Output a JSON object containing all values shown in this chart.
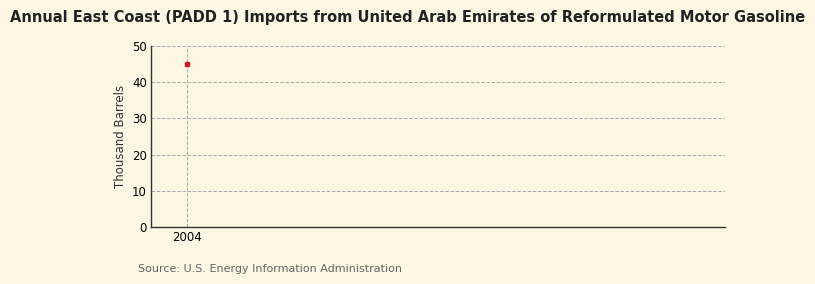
{
  "title": "Annual East Coast (PADD 1) Imports from United Arab Emirates of Reformulated Motor Gasoline",
  "ylabel": "Thousand Barrels",
  "source_text": "Source: U.S. Energy Information Administration",
  "x_data": [
    2004
  ],
  "y_data": [
    45
  ],
  "marker_color": "#cc2222",
  "marker_style": "s",
  "marker_size": 3.5,
  "ylim": [
    0,
    50
  ],
  "yticks": [
    0,
    10,
    20,
    30,
    40,
    50
  ],
  "xlim": [
    2003.3,
    2014.5
  ],
  "xticks": [
    2004
  ],
  "xtick_labels": [
    "2004"
  ],
  "background_color": "#fdf6e3",
  "grid_color": "#aaaaaa",
  "grid_style": "--",
  "title_fontsize": 10.5,
  "ylabel_fontsize": 8.5,
  "tick_fontsize": 8.5,
  "source_fontsize": 8
}
